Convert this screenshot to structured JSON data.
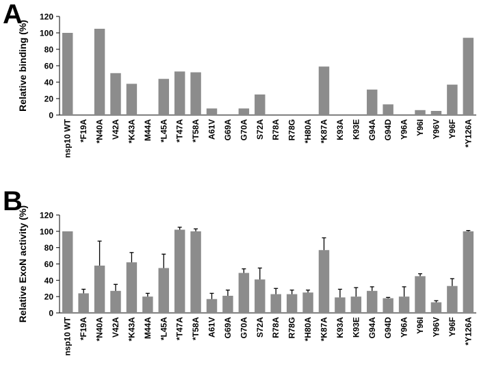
{
  "chart_data": [
    {
      "type": "bar",
      "panel_label": "A",
      "ylabel": "Relative binding (%)",
      "ylim": [
        0,
        120
      ],
      "yticks": [
        "0",
        "20",
        "40",
        "60",
        "80",
        "100",
        "120"
      ],
      "grid": false,
      "bar_color": "#8c8c8c",
      "categories": [
        "nsp10 WT",
        "*F19A",
        "*N40A",
        "V42A",
        "*K43A",
        "M44A",
        "*L45A",
        "*T47A",
        "*T58A",
        "A61V",
        "G69A",
        "G70A",
        "S72A",
        "R78A",
        "R78G",
        "*H80A",
        "*K87A",
        "K93A",
        "K93E",
        "G94A",
        "G94D",
        "Y96A",
        "Y96I",
        "Y96V",
        "Y96F",
        "*Y126A"
      ],
      "values": [
        100,
        0,
        105,
        51,
        38,
        0,
        44,
        53,
        52,
        8,
        0,
        8,
        25,
        0,
        0,
        0,
        59,
        0,
        0,
        31,
        13,
        0,
        6,
        5,
        37,
        94
      ]
    },
    {
      "type": "bar",
      "panel_label": "B",
      "ylabel": "Relative ExoN activity (%)",
      "ylim": [
        0,
        120
      ],
      "yticks": [
        "0",
        "20",
        "40",
        "60",
        "80",
        "100",
        "120"
      ],
      "grid": false,
      "bar_color": "#8c8c8c",
      "categories": [
        "nsp10 WT",
        "*F19A",
        "*N40A",
        "V42A",
        "*K43A",
        "M44A",
        "*L45A",
        "*T47A",
        "*T58A",
        "A61V",
        "G69A",
        "G70A",
        "S72A",
        "R78A",
        "R78G",
        "*H80A",
        "*K87A",
        "K93A",
        "K93E",
        "G94A",
        "G94D",
        "Y96A",
        "Y96I",
        "Y96V",
        "Y96F",
        "*Y126A"
      ],
      "values": [
        100,
        24,
        58,
        27,
        62,
        20,
        55,
        102,
        100,
        17,
        21,
        49,
        41,
        23,
        23,
        25,
        77,
        19,
        20,
        27,
        18,
        20,
        45,
        13,
        33,
        100
      ],
      "errors": [
        0,
        5,
        30,
        8,
        12,
        4,
        17,
        3,
        3,
        7,
        7,
        5,
        14,
        7,
        5,
        3,
        15,
        10,
        11,
        5,
        1,
        12,
        3,
        2,
        9,
        1
      ]
    }
  ]
}
